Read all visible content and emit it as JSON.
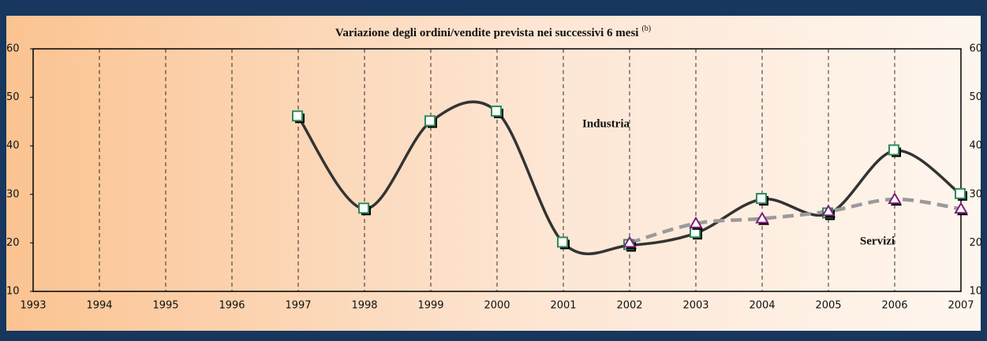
{
  "chart_data": {
    "type": "line",
    "title": "Variazione degli ordini/vendite prevista nei successivi 6 mesi",
    "title_note": "(b)",
    "x": [
      1997,
      1998,
      1999,
      2000,
      2001,
      2002,
      2003,
      2004,
      2005,
      2006,
      2007
    ],
    "series": [
      {
        "name": "Industria",
        "color": "#333333",
        "marker_color": "#2e8b57",
        "values": [
          46,
          27,
          45,
          47,
          20,
          19.5,
          22,
          29,
          26,
          39,
          30
        ]
      },
      {
        "name": "Servizi",
        "color": "#9a9a9a",
        "marker_color": "#7b1f7b",
        "values": [
          null,
          null,
          null,
          null,
          null,
          20,
          24,
          25,
          26.5,
          29,
          27
        ]
      }
    ],
    "xlim": [
      1993,
      2007
    ],
    "xticks": [
      1993,
      1994,
      1995,
      1996,
      1997,
      1998,
      1999,
      2000,
      2001,
      2002,
      2003,
      2004,
      2005,
      2006,
      2007
    ],
    "ylim": [
      10,
      60
    ],
    "yticks": [
      10,
      20,
      30,
      40,
      50,
      60
    ],
    "grid": true
  }
}
